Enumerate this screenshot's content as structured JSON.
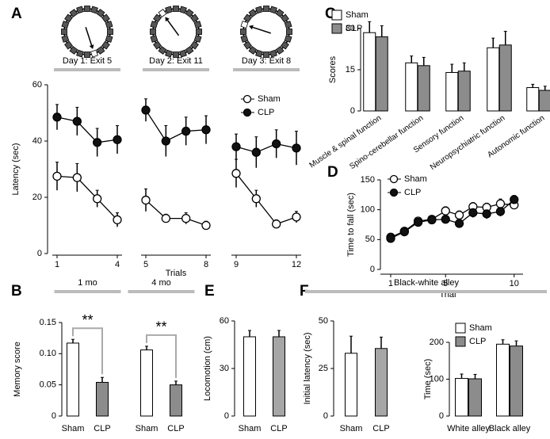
{
  "chart_data": [
    {
      "panel": "A",
      "type": "line",
      "ylabel": "Latency (sec)",
      "xlabel": "Trials",
      "x": [
        1,
        2,
        3,
        4,
        5,
        6,
        7,
        8,
        9,
        10,
        11,
        12
      ],
      "xticks": [
        1,
        4,
        5,
        8,
        9,
        12
      ],
      "panels": [
        {
          "title": "Day 1: Exit 5",
          "xlim": [
            1,
            4
          ]
        },
        {
          "title": "Day 2: Exit 11",
          "xlim": [
            5,
            8
          ]
        },
        {
          "title": "Day 3: Exit 8",
          "xlim": [
            9,
            12
          ]
        }
      ],
      "ylim": [
        0,
        60
      ],
      "yticks": [
        0,
        20,
        40,
        60
      ],
      "legend": "upper right",
      "series": [
        {
          "name": "Sham",
          "color": "#ffffff",
          "values": [
            27.5,
            27,
            19.5,
            12,
            19,
            12.5,
            12.5,
            10,
            28.5,
            19.5,
            10.5,
            13
          ],
          "errors": [
            5,
            5,
            3,
            2.5,
            4,
            1.5,
            2,
            1.5,
            5,
            3,
            1.5,
            2
          ]
        },
        {
          "name": "CLP",
          "color": "#111111",
          "values": [
            48.5,
            47,
            39.5,
            40.5,
            51,
            40,
            43.5,
            44,
            38,
            36,
            39,
            37.5
          ],
          "errors": [
            4.5,
            5,
            5,
            5,
            4,
            5.5,
            5,
            5,
            4.5,
            5.5,
            5,
            6
          ]
        }
      ]
    },
    {
      "panel": "B",
      "type": "bar",
      "ylabel": "Memory score",
      "categories": [
        "1 mo",
        "4 mo"
      ],
      "ylim": [
        0,
        0.15
      ],
      "yticks": [
        0,
        0.05,
        {
          "value": 0.1,
          "label": "0.10"
        },
        0.15
      ],
      "annotations": [
        "**",
        "**"
      ],
      "series": [
        {
          "name": "Sham",
          "color": "#ffffff",
          "values": [
            0.117,
            0.106
          ],
          "errors": [
            0.006,
            0.006
          ]
        },
        {
          "name": "CLP",
          "color": "#8c8c8c",
          "values": [
            0.054,
            0.05
          ],
          "errors": [
            0.008,
            0.006
          ]
        }
      ]
    },
    {
      "panel": "C",
      "type": "bar",
      "ylabel": "Scores",
      "categories": [
        "Muscle & spinal function",
        "Spino-cerebellar function",
        "Sensory function",
        "Neuropsychiatric function",
        "Autonomic function"
      ],
      "ylim": [
        0,
        30
      ],
      "yticks": [
        0,
        15,
        30
      ],
      "legend": "upper left",
      "series": [
        {
          "name": "Sham",
          "color": "#ffffff",
          "values": [
            28.5,
            17.5,
            14,
            23,
            8.5
          ],
          "errors": [
            4,
            2.5,
            3,
            3.5,
            1.2
          ]
        },
        {
          "name": "CLP",
          "color": "#8c8c8c",
          "values": [
            27,
            16.5,
            14.5,
            24,
            7.5
          ],
          "errors": [
            4,
            3,
            3,
            5,
            1.5
          ]
        }
      ]
    },
    {
      "panel": "D",
      "type": "line",
      "ylabel": "Time to fall (sec)",
      "xlabel": "Trial",
      "x": [
        1,
        2,
        3,
        4,
        5,
        6,
        7,
        8,
        9,
        10
      ],
      "xlim": [
        0.25,
        10.65
      ],
      "xticks": [
        1,
        5,
        10
      ],
      "ylim": [
        0,
        150
      ],
      "yticks": [
        0,
        50,
        100,
        150
      ],
      "legend": "upper left",
      "series": [
        {
          "name": "Sham",
          "color": "#ffffff",
          "values": [
            54,
            64,
            81,
            84,
            98,
            91,
            105,
            104,
            110,
            108
          ],
          "errors": [
            4,
            5,
            6,
            6,
            7,
            7,
            7,
            7,
            8,
            7
          ]
        },
        {
          "name": "CLP",
          "color": "#111111",
          "values": [
            52,
            63,
            79,
            83,
            84,
            77,
            95,
            93,
            97,
            117
          ],
          "errors": [
            4,
            5,
            6,
            6,
            7,
            7,
            8,
            8,
            8,
            7
          ]
        }
      ]
    },
    {
      "panel": "E",
      "type": "bar",
      "ylabel": "Locomotion (cm)",
      "categories": [
        "Sham",
        "CLP"
      ],
      "values": [
        50,
        50
      ],
      "errors": [
        4,
        4
      ],
      "colors": [
        "#ffffff",
        "#a6a6a6"
      ],
      "ylim": [
        0,
        60
      ],
      "yticks": [
        0,
        30,
        60
      ]
    },
    {
      "panel": "F",
      "type": "bar",
      "group_title": "Black-white alley",
      "ylabel": "Initial latency (sec)",
      "categories": [
        "Sham",
        "CLP"
      ],
      "values": [
        33,
        35.5
      ],
      "errors": [
        9,
        6
      ],
      "colors": [
        "#ffffff",
        "#a6a6a6"
      ],
      "ylim": [
        0,
        50
      ],
      "yticks": [
        0,
        25,
        50
      ]
    },
    {
      "type": "bar",
      "ylabel": "Time (sec)",
      "categories": [
        "White alley",
        "Black alley"
      ],
      "ylim": [
        0,
        200
      ],
      "yticks": [
        0,
        100,
        200
      ],
      "legend": "upper left",
      "series": [
        {
          "name": "Sham",
          "color": "#ffffff",
          "values": [
            102,
            195
          ],
          "errors": [
            12,
            12
          ]
        },
        {
          "name": "CLP",
          "color": "#8c8c8c",
          "values": [
            101,
            190
          ],
          "errors": [
            12,
            14
          ]
        }
      ]
    }
  ]
}
